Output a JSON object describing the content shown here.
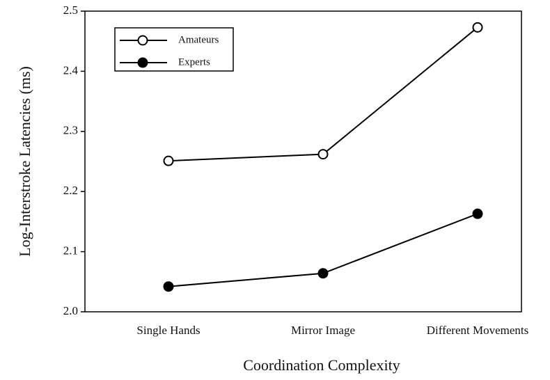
{
  "chart_data": {
    "type": "line",
    "x_label": "Coordination Complexity",
    "y_label": "Log-Interstroke Latencies (ms)",
    "categories": [
      "Single Hands",
      "Mirror Image",
      "Different Movements"
    ],
    "series": [
      {
        "name": "Amateurs",
        "color": "#000000",
        "marker": "open",
        "values": [
          2.251,
          2.262,
          2.473
        ]
      },
      {
        "name": "Experts",
        "color": "#000000",
        "marker": "filled",
        "values": [
          2.042,
          2.064,
          2.163
        ]
      }
    ],
    "ylim": [
      2.0,
      2.5
    ],
    "yticks": [
      {
        "value": 2.0,
        "label": "2.0"
      },
      2.1,
      2.2,
      2.3,
      2.4,
      2.5
    ],
    "grid": false,
    "legend": "upper left"
  }
}
